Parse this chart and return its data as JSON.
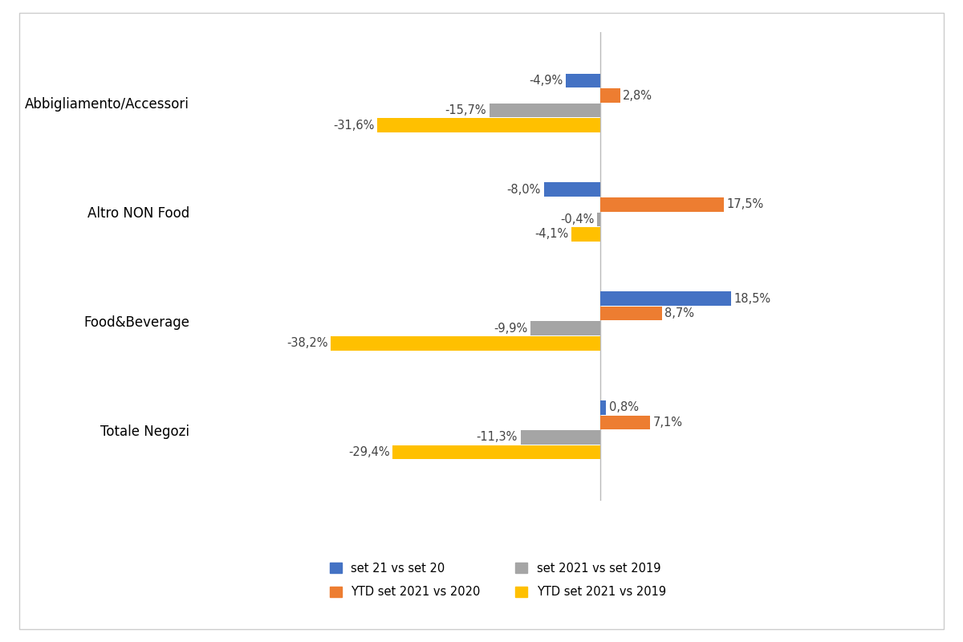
{
  "categories": [
    "Totale Negozi",
    "Food&Beverage",
    "Altro NON Food",
    "Abbigliamento/Accessori"
  ],
  "series": {
    "set21_vs_set20": [
      0.8,
      18.5,
      -8.0,
      -4.9
    ],
    "ytd_2021_vs_2020": [
      7.1,
      8.7,
      17.5,
      2.8
    ],
    "set2021_vs_set2019": [
      -11.3,
      -9.9,
      -0.4,
      -15.7
    ],
    "ytd_2021_vs_2019": [
      -29.4,
      -38.2,
      -4.1,
      -31.6
    ]
  },
  "colors": {
    "set21_vs_set20": "#4472C4",
    "ytd_2021_vs_2020": "#ED7D31",
    "set2021_vs_set2019": "#A5A5A5",
    "ytd_2021_vs_2019": "#FFC000"
  },
  "legend_labels": {
    "set21_vs_set20": "set 21 vs set 20",
    "ytd_2021_vs_2020": "YTD set 2021 vs 2020",
    "set2021_vs_set2019": "set 2021 vs set 2019",
    "ytd_2021_vs_2019": "YTD set 2021 vs 2019"
  },
  "xlim": [
    -55,
    35
  ],
  "bar_height": 0.13,
  "label_fontsize": 10.5,
  "category_fontsize": 12,
  "background_color": "#FFFFFF",
  "zero_line_color": "#BBBBBB"
}
